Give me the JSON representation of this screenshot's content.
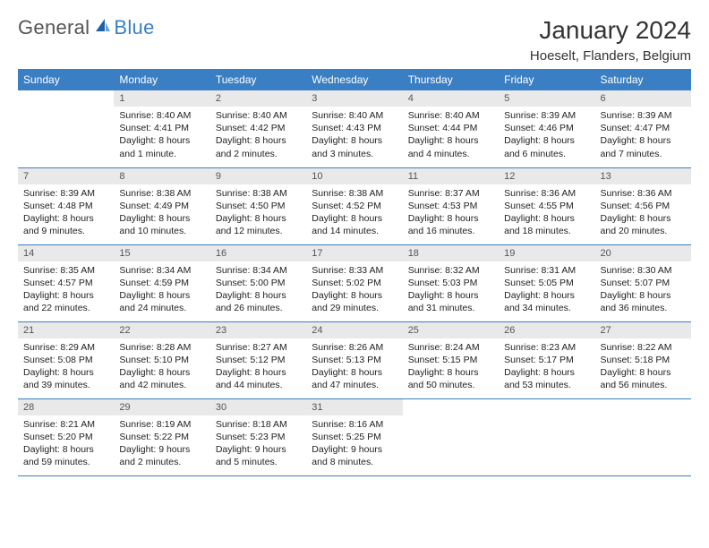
{
  "brand": {
    "part1": "General",
    "part2": "Blue",
    "logo_color": "#1f5fa8"
  },
  "title": "January 2024",
  "location": "Hoeselt, Flanders, Belgium",
  "colors": {
    "header_bg": "#3a7fc4",
    "header_text": "#ffffff",
    "daynum_bg": "#e9e9e9",
    "rule": "#3a7fc4",
    "body_text": "#222222"
  },
  "weekdays": [
    "Sunday",
    "Monday",
    "Tuesday",
    "Wednesday",
    "Thursday",
    "Friday",
    "Saturday"
  ],
  "weeks": [
    [
      {
        "day": "",
        "lines": []
      },
      {
        "day": "1",
        "lines": [
          "Sunrise: 8:40 AM",
          "Sunset: 4:41 PM",
          "Daylight: 8 hours and 1 minute."
        ]
      },
      {
        "day": "2",
        "lines": [
          "Sunrise: 8:40 AM",
          "Sunset: 4:42 PM",
          "Daylight: 8 hours and 2 minutes."
        ]
      },
      {
        "day": "3",
        "lines": [
          "Sunrise: 8:40 AM",
          "Sunset: 4:43 PM",
          "Daylight: 8 hours and 3 minutes."
        ]
      },
      {
        "day": "4",
        "lines": [
          "Sunrise: 8:40 AM",
          "Sunset: 4:44 PM",
          "Daylight: 8 hours and 4 minutes."
        ]
      },
      {
        "day": "5",
        "lines": [
          "Sunrise: 8:39 AM",
          "Sunset: 4:46 PM",
          "Daylight: 8 hours and 6 minutes."
        ]
      },
      {
        "day": "6",
        "lines": [
          "Sunrise: 8:39 AM",
          "Sunset: 4:47 PM",
          "Daylight: 8 hours and 7 minutes."
        ]
      }
    ],
    [
      {
        "day": "7",
        "lines": [
          "Sunrise: 8:39 AM",
          "Sunset: 4:48 PM",
          "Daylight: 8 hours and 9 minutes."
        ]
      },
      {
        "day": "8",
        "lines": [
          "Sunrise: 8:38 AM",
          "Sunset: 4:49 PM",
          "Daylight: 8 hours and 10 minutes."
        ]
      },
      {
        "day": "9",
        "lines": [
          "Sunrise: 8:38 AM",
          "Sunset: 4:50 PM",
          "Daylight: 8 hours and 12 minutes."
        ]
      },
      {
        "day": "10",
        "lines": [
          "Sunrise: 8:38 AM",
          "Sunset: 4:52 PM",
          "Daylight: 8 hours and 14 minutes."
        ]
      },
      {
        "day": "11",
        "lines": [
          "Sunrise: 8:37 AM",
          "Sunset: 4:53 PM",
          "Daylight: 8 hours and 16 minutes."
        ]
      },
      {
        "day": "12",
        "lines": [
          "Sunrise: 8:36 AM",
          "Sunset: 4:55 PM",
          "Daylight: 8 hours and 18 minutes."
        ]
      },
      {
        "day": "13",
        "lines": [
          "Sunrise: 8:36 AM",
          "Sunset: 4:56 PM",
          "Daylight: 8 hours and 20 minutes."
        ]
      }
    ],
    [
      {
        "day": "14",
        "lines": [
          "Sunrise: 8:35 AM",
          "Sunset: 4:57 PM",
          "Daylight: 8 hours and 22 minutes."
        ]
      },
      {
        "day": "15",
        "lines": [
          "Sunrise: 8:34 AM",
          "Sunset: 4:59 PM",
          "Daylight: 8 hours and 24 minutes."
        ]
      },
      {
        "day": "16",
        "lines": [
          "Sunrise: 8:34 AM",
          "Sunset: 5:00 PM",
          "Daylight: 8 hours and 26 minutes."
        ]
      },
      {
        "day": "17",
        "lines": [
          "Sunrise: 8:33 AM",
          "Sunset: 5:02 PM",
          "Daylight: 8 hours and 29 minutes."
        ]
      },
      {
        "day": "18",
        "lines": [
          "Sunrise: 8:32 AM",
          "Sunset: 5:03 PM",
          "Daylight: 8 hours and 31 minutes."
        ]
      },
      {
        "day": "19",
        "lines": [
          "Sunrise: 8:31 AM",
          "Sunset: 5:05 PM",
          "Daylight: 8 hours and 34 minutes."
        ]
      },
      {
        "day": "20",
        "lines": [
          "Sunrise: 8:30 AM",
          "Sunset: 5:07 PM",
          "Daylight: 8 hours and 36 minutes."
        ]
      }
    ],
    [
      {
        "day": "21",
        "lines": [
          "Sunrise: 8:29 AM",
          "Sunset: 5:08 PM",
          "Daylight: 8 hours and 39 minutes."
        ]
      },
      {
        "day": "22",
        "lines": [
          "Sunrise: 8:28 AM",
          "Sunset: 5:10 PM",
          "Daylight: 8 hours and 42 minutes."
        ]
      },
      {
        "day": "23",
        "lines": [
          "Sunrise: 8:27 AM",
          "Sunset: 5:12 PM",
          "Daylight: 8 hours and 44 minutes."
        ]
      },
      {
        "day": "24",
        "lines": [
          "Sunrise: 8:26 AM",
          "Sunset: 5:13 PM",
          "Daylight: 8 hours and 47 minutes."
        ]
      },
      {
        "day": "25",
        "lines": [
          "Sunrise: 8:24 AM",
          "Sunset: 5:15 PM",
          "Daylight: 8 hours and 50 minutes."
        ]
      },
      {
        "day": "26",
        "lines": [
          "Sunrise: 8:23 AM",
          "Sunset: 5:17 PM",
          "Daylight: 8 hours and 53 minutes."
        ]
      },
      {
        "day": "27",
        "lines": [
          "Sunrise: 8:22 AM",
          "Sunset: 5:18 PM",
          "Daylight: 8 hours and 56 minutes."
        ]
      }
    ],
    [
      {
        "day": "28",
        "lines": [
          "Sunrise: 8:21 AM",
          "Sunset: 5:20 PM",
          "Daylight: 8 hours and 59 minutes."
        ]
      },
      {
        "day": "29",
        "lines": [
          "Sunrise: 8:19 AM",
          "Sunset: 5:22 PM",
          "Daylight: 9 hours and 2 minutes."
        ]
      },
      {
        "day": "30",
        "lines": [
          "Sunrise: 8:18 AM",
          "Sunset: 5:23 PM",
          "Daylight: 9 hours and 5 minutes."
        ]
      },
      {
        "day": "31",
        "lines": [
          "Sunrise: 8:16 AM",
          "Sunset: 5:25 PM",
          "Daylight: 9 hours and 8 minutes."
        ]
      },
      {
        "day": "",
        "lines": []
      },
      {
        "day": "",
        "lines": []
      },
      {
        "day": "",
        "lines": []
      }
    ]
  ]
}
